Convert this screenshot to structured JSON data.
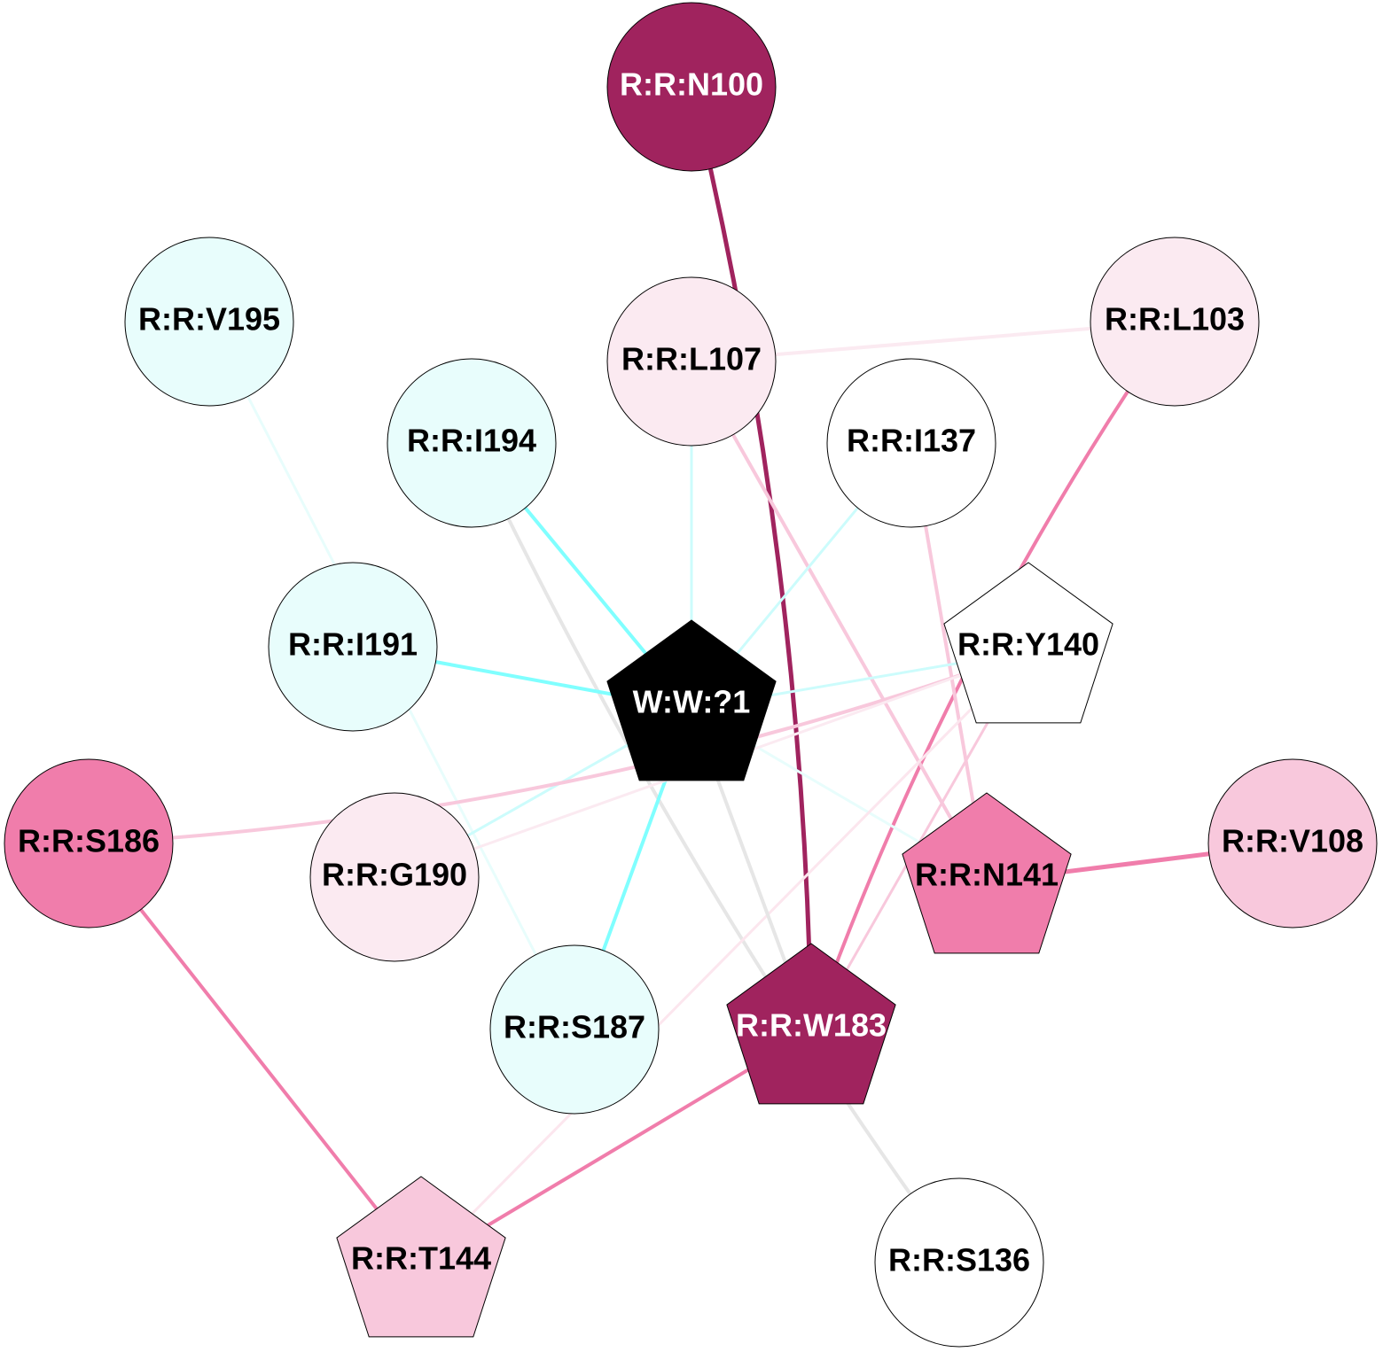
{
  "nodes": [
    {
      "label": "R:R:N100"
    },
    {
      "label": "R:R:V195"
    },
    {
      "label": "R:R:L107"
    },
    {
      "label": "R:R:L103"
    },
    {
      "label": "R:R:I194"
    },
    {
      "label": "R:R:I137"
    },
    {
      "label": "R:R:I191"
    },
    {
      "label": "W:W:?1"
    },
    {
      "label": "R:R:Y140"
    },
    {
      "label": "R:R:S186"
    },
    {
      "label": "R:R:G190"
    },
    {
      "label": "R:R:N141"
    },
    {
      "label": "R:R:V108"
    },
    {
      "label": "R:R:S187"
    },
    {
      "label": "R:R:W183"
    },
    {
      "label": "R:R:T144"
    },
    {
      "label": "R:R:S136"
    }
  ]
}
